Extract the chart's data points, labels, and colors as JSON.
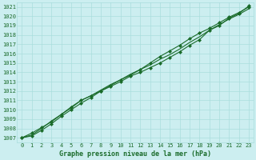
{
  "title": "Graphe pression niveau de la mer (hPa)",
  "background_color": "#cceef0",
  "grid_color": "#aadddd",
  "line_color": "#1a6b2a",
  "marker_color": "#1a6b2a",
  "xlim": [
    0,
    23
  ],
  "ylim": [
    1007,
    1021
  ],
  "yticks": [
    1007,
    1008,
    1009,
    1010,
    1011,
    1012,
    1013,
    1014,
    1015,
    1016,
    1017,
    1018,
    1019,
    1020,
    1021
  ],
  "xticks": [
    0,
    1,
    2,
    3,
    4,
    5,
    6,
    7,
    8,
    9,
    10,
    11,
    12,
    13,
    14,
    15,
    16,
    17,
    18,
    19,
    20,
    21,
    22,
    23
  ],
  "series": [
    [
      1007.0,
      1007.5,
      1008.1,
      1008.7,
      1009.5,
      1010.3,
      1011.0,
      1011.5,
      1012.0,
      1012.5,
      1013.0,
      1013.6,
      1014.0,
      1014.5,
      1015.0,
      1015.6,
      1016.2,
      1016.9,
      1017.5,
      1018.5,
      1019.0,
      1019.8,
      1020.3,
      1021.1
    ],
    [
      1007.0,
      1007.3,
      1008.0,
      1008.8,
      1009.5,
      1010.2,
      1011.0,
      1011.5,
      1012.1,
      1012.7,
      1013.2,
      1013.8,
      1014.3,
      1014.8,
      1015.4,
      1015.9,
      1016.5,
      1017.2,
      1017.8,
      1018.5,
      1019.1,
      1019.7,
      1020.2,
      1020.8
    ],
    [
      1007.0,
      1007.2,
      1007.8,
      1008.5,
      1009.3,
      1010.0,
      1010.7,
      1011.3,
      1012.0,
      1012.6,
      1013.2,
      1013.7,
      1014.3,
      1015.0,
      1015.7,
      1016.3,
      1016.9,
      1017.6,
      1018.2,
      1018.7,
      1019.3,
      1019.9,
      1020.4,
      1021.0
    ]
  ],
  "series_styles": [
    {
      "marker": "D",
      "ms": 2.0,
      "lw": 0.8
    },
    {
      "marker": null,
      "ms": 0,
      "lw": 0.8
    },
    {
      "marker": "D",
      "ms": 2.0,
      "lw": 0.8
    }
  ],
  "tick_fontsize": 5.0,
  "xlabel_fontsize": 6.0,
  "tick_color": "#1a6b2a",
  "figsize": [
    3.2,
    2.0
  ],
  "dpi": 100
}
